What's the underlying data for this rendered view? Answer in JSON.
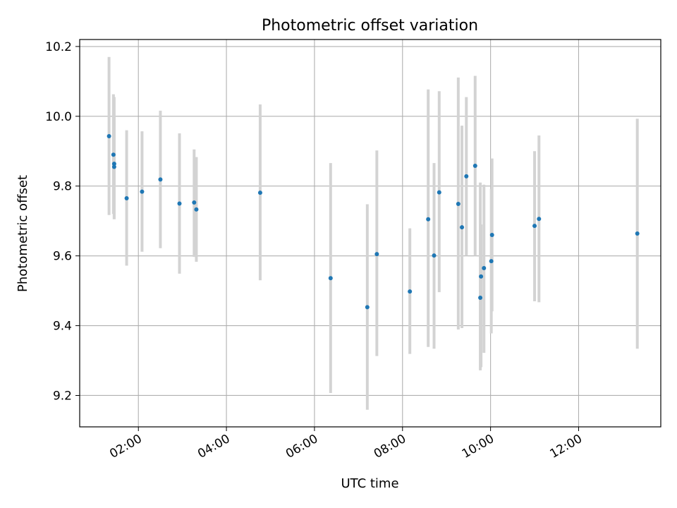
{
  "chart_data": {
    "type": "scatter",
    "title": "Photometric offset variation",
    "xlabel": "UTC time",
    "ylabel": "Photometric offset",
    "x_unit": "hours",
    "xlim": [
      "00:40",
      "13:52"
    ],
    "ylim": [
      9.11,
      10.22
    ],
    "x_ticks": [
      "02:00",
      "04:00",
      "06:00",
      "08:00",
      "10:00",
      "12:00"
    ],
    "y_ticks": [
      9.2,
      9.4,
      9.6,
      9.8,
      10.0,
      10.2
    ],
    "y_tick_labels": [
      "9.2",
      "9.4",
      "9.6",
      "9.8",
      "10.0",
      "10.2"
    ],
    "grid": true,
    "legend": "none",
    "colors": {
      "marker": "#1f77b4",
      "errorbar": "#d3d3d3",
      "grid": "#b0b0b0"
    },
    "series": [
      {
        "points": [
          {
            "x": "01:20",
            "y": 9.943,
            "lo": 9.717,
            "hi": 10.17
          },
          {
            "x": "01:26",
            "y": 9.89,
            "lo": 9.72,
            "hi": 10.063
          },
          {
            "x": "01:27",
            "y": 9.864,
            "lo": 9.705,
            "hi": 10.055
          },
          {
            "x": "01:27",
            "y": 9.855,
            "lo": 9.706,
            "hi": 10.0
          },
          {
            "x": "01:44",
            "y": 9.765,
            "lo": 9.572,
            "hi": 9.96
          },
          {
            "x": "02:05",
            "y": 9.784,
            "lo": 9.612,
            "hi": 9.957
          },
          {
            "x": "02:30",
            "y": 9.819,
            "lo": 9.622,
            "hi": 10.016
          },
          {
            "x": "02:56",
            "y": 9.75,
            "lo": 9.549,
            "hi": 9.951
          },
          {
            "x": "03:16",
            "y": 9.753,
            "lo": 9.597,
            "hi": 9.905
          },
          {
            "x": "03:19",
            "y": 9.733,
            "lo": 9.583,
            "hi": 9.883
          },
          {
            "x": "04:46",
            "y": 9.781,
            "lo": 9.53,
            "hi": 10.034
          },
          {
            "x": "06:22",
            "y": 9.536,
            "lo": 9.207,
            "hi": 9.866
          },
          {
            "x": "07:12",
            "y": 9.453,
            "lo": 9.159,
            "hi": 9.748
          },
          {
            "x": "07:25",
            "y": 9.605,
            "lo": 9.313,
            "hi": 9.902
          },
          {
            "x": "08:10",
            "y": 9.498,
            "lo": 9.319,
            "hi": 9.679
          },
          {
            "x": "08:35",
            "y": 9.705,
            "lo": 9.339,
            "hi": 10.077
          },
          {
            "x": "08:43",
            "y": 9.601,
            "lo": 9.334,
            "hi": 9.866
          },
          {
            "x": "08:50",
            "y": 9.782,
            "lo": 9.496,
            "hi": 10.072
          },
          {
            "x": "09:16",
            "y": 9.749,
            "lo": 9.389,
            "hi": 10.111
          },
          {
            "x": "09:21",
            "y": 9.682,
            "lo": 9.393,
            "hi": 9.973
          },
          {
            "x": "09:27",
            "y": 9.828,
            "lo": 9.6,
            "hi": 10.055
          },
          {
            "x": "09:39",
            "y": 9.858,
            "lo": 9.6,
            "hi": 10.116
          },
          {
            "x": "09:46",
            "y": 9.48,
            "lo": 9.272,
            "hi": 9.81
          },
          {
            "x": "09:47",
            "y": 9.541,
            "lo": 9.281,
            "hi": 9.69
          },
          {
            "x": "09:51",
            "y": 9.565,
            "lo": 9.322,
            "hi": 9.804
          },
          {
            "x": "10:01",
            "y": 9.585,
            "lo": 9.378,
            "hi": 9.792
          },
          {
            "x": "10:02",
            "y": 9.66,
            "lo": 9.441,
            "hi": 9.879
          },
          {
            "x": "11:00",
            "y": 9.686,
            "lo": 9.47,
            "hi": 9.9
          },
          {
            "x": "11:06",
            "y": 9.706,
            "lo": 9.467,
            "hi": 9.945
          },
          {
            "x": "13:20",
            "y": 9.664,
            "lo": 9.334,
            "hi": 9.993
          }
        ]
      }
    ]
  }
}
